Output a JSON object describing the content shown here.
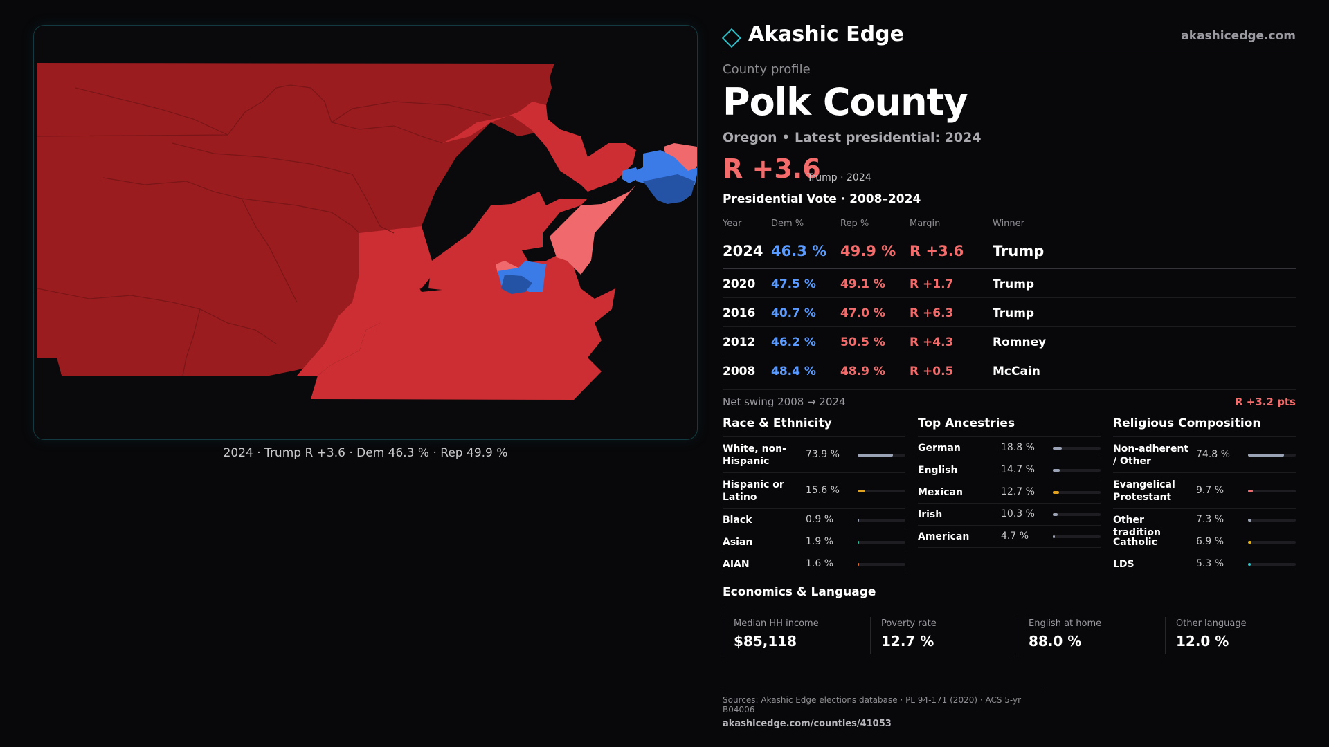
{
  "map": {
    "caption": "2024 · Trump R +3.6 · Dem 46.3 % · Rep 49.9 %",
    "colors": {
      "strong_rep": "#9a1c1f",
      "lean_rep": "#cc2e33",
      "tilt_rep": "#f06a6d",
      "lean_dem": "#3b7be8",
      "strong_dem": "#2453a6",
      "background": "#0a0a0c"
    }
  },
  "brand": {
    "name": "Akashic Edge",
    "url": "akashicedge.com",
    "icon": "diamond-icon",
    "accent": "#2ec0c9"
  },
  "profile": {
    "eyebrow": "County profile",
    "name": "Polk County",
    "subline": "Oregon • Latest presidential: 2024",
    "margin": "R +3.6",
    "margin_note": "Trump · 2024"
  },
  "vote": {
    "title": "Presidential Vote · 2008–2024",
    "headers": {
      "year": "Year",
      "dem": "Dem %",
      "rep": "Rep %",
      "margin": "Margin",
      "winner": "Winner"
    },
    "rows": [
      {
        "year": "2024",
        "dem": "46.3 %",
        "rep": "49.9 %",
        "margin": "R +3.6",
        "winner": "Trump"
      },
      {
        "year": "2020",
        "dem": "47.5 %",
        "rep": "49.1 %",
        "margin": "R +1.7",
        "winner": "Trump"
      },
      {
        "year": "2016",
        "dem": "40.7 %",
        "rep": "47.0 %",
        "margin": "R +6.3",
        "winner": "Trump"
      },
      {
        "year": "2012",
        "dem": "46.2 %",
        "rep": "50.5 %",
        "margin": "R +4.3",
        "winner": "Romney"
      },
      {
        "year": "2008",
        "dem": "48.4 %",
        "rep": "48.9 %",
        "margin": "R +0.5",
        "winner": "McCain"
      }
    ],
    "swing_label": "Net swing 2008 → 2024",
    "swing_value": "R +3.2 pts"
  },
  "race": {
    "title": "Race & Ethnicity",
    "items": [
      {
        "label": "White, non-Hispanic",
        "pct": "73.9 %",
        "value": 73.9,
        "color": "#9aa3b5"
      },
      {
        "label": "Hispanic or Latino",
        "pct": "15.6 %",
        "value": 15.6,
        "color": "#e0a020"
      },
      {
        "label": "Black",
        "pct": "0.9 %",
        "value": 0.9,
        "color": "#9aa3b5"
      },
      {
        "label": "Asian",
        "pct": "1.9 %",
        "value": 1.9,
        "color": "#2ec0a0"
      },
      {
        "label": "AIAN",
        "pct": "1.6 %",
        "value": 1.6,
        "color": "#e07030"
      }
    ]
  },
  "ancestry": {
    "title": "Top Ancestries",
    "items": [
      {
        "label": "German",
        "pct": "18.8 %",
        "value": 18.8,
        "color": "#9aa3b5"
      },
      {
        "label": "English",
        "pct": "14.7 %",
        "value": 14.7,
        "color": "#9aa3b5"
      },
      {
        "label": "Mexican",
        "pct": "12.7 %",
        "value": 12.7,
        "color": "#e0a020"
      },
      {
        "label": "Irish",
        "pct": "10.3 %",
        "value": 10.3,
        "color": "#9aa3b5"
      },
      {
        "label": "American",
        "pct": "4.7 %",
        "value": 4.7,
        "color": "#9aa3b5"
      }
    ]
  },
  "religion": {
    "title": "Religious Composition",
    "items": [
      {
        "label": "Non-adherent / Other",
        "pct": "74.8 %",
        "value": 74.8,
        "color": "#9aa3b5"
      },
      {
        "label": "Evangelical Protestant",
        "pct": "9.7 %",
        "value": 9.7,
        "color": "#f06a6d"
      },
      {
        "label": "Other tradition",
        "pct": "7.3 %",
        "value": 7.3,
        "color": "#9aa3b5"
      },
      {
        "label": "Catholic",
        "pct": "6.9 %",
        "value": 6.9,
        "color": "#e0b020"
      },
      {
        "label": "LDS",
        "pct": "5.3 %",
        "value": 5.3,
        "color": "#2ec0c9"
      }
    ]
  },
  "economics": {
    "title": "Economics & Language",
    "cards": [
      {
        "label": "Median HH income",
        "value": "$85,118"
      },
      {
        "label": "Poverty rate",
        "value": "12.7 %"
      },
      {
        "label": "English at home",
        "value": "88.0 %"
      },
      {
        "label": "Other language",
        "value": "12.0 %"
      }
    ]
  },
  "sources": {
    "line1": "Sources: Akashic Edge elections database · PL 94-171 (2020) · ACS 5-yr B04006",
    "line2": "akashicedge.com/counties/41053"
  }
}
